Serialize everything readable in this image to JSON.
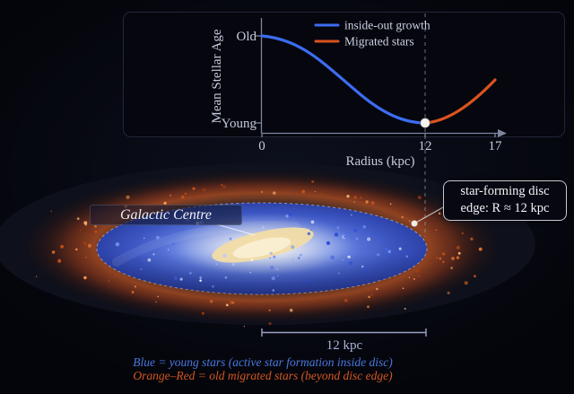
{
  "palette": {
    "page_bg": "#080a14",
    "panel_bg": "#05060e",
    "axis_color": "#7e87a0",
    "tick_text": "#c6cbdd",
    "blue_curve": "#3c6cf0",
    "orange_curve": "#d8531f",
    "marker_dot": "#f5f2ee",
    "dashed_line": "#9aa0b8",
    "disc_blue": "#3b57c8",
    "halo_orange": "#cd5b20",
    "bulge_cream": "#f6e2ae",
    "scalebar_color": "#99a2c8",
    "caption_blue": "#4a78e0",
    "caption_orange": "#d4581f"
  },
  "chart": {
    "ylabel": "Mean Stellar Age",
    "xlabel": "Radius (kpc)",
    "ytick_old": "Old",
    "ytick_young": "Young",
    "xtick_0": "0",
    "xtick_12": "12",
    "xtick_17": "17",
    "legend": {
      "inside_out": "inside-out growth",
      "migrated": "Migrated stars"
    }
  },
  "chart_data": {
    "type": "line",
    "title": "",
    "xlabel": "Radius (kpc)",
    "ylabel": "Mean Stellar Age",
    "x_ticks": [
      0,
      12,
      17
    ],
    "y_ticks_qualitative": [
      "Young",
      "Old"
    ],
    "y_note": "qualitative axis: 0 = Young (bottom), 1 = Old (top)",
    "series": [
      {
        "name": "inside-out growth",
        "color": "#3c6cf0",
        "x": [
          0,
          2,
          4,
          6,
          8,
          10,
          12
        ],
        "y": [
          1.0,
          0.92,
          0.74,
          0.5,
          0.26,
          0.08,
          0.0
        ]
      },
      {
        "name": "Migrated stars",
        "color": "#d8531f",
        "x": [
          12,
          13,
          14,
          15,
          16,
          17
        ],
        "y": [
          0.0,
          0.04,
          0.12,
          0.24,
          0.38,
          0.55
        ]
      }
    ],
    "annotations": [
      {
        "type": "marker",
        "x": 12,
        "y": 0,
        "style": "white-dot"
      },
      {
        "type": "dashed-vline",
        "x": 12
      }
    ],
    "legend_position": "upper-right",
    "grid": false
  },
  "galaxy": {
    "centre_label": "Galactic Centre",
    "callout": {
      "line1": "star-forming disc",
      "line2": "edge: R ≈ 12 kpc"
    },
    "scalebar_label": "12 kpc"
  },
  "captions": {
    "blue_line": "Blue = young stars (active star formation inside disc)",
    "orange_line": "Orange–Red = old migrated stars (beyond disc edge)"
  },
  "decor": {
    "disc_star_colors": [
      "#2a49d8",
      "#4a66e8",
      "#7d97f5",
      "#b9c8ff",
      "#ffffff"
    ],
    "halo_star_colors": [
      "#ff9a4d",
      "#e8762e",
      "#c8521a",
      "#ffb977",
      "#a83d10"
    ],
    "disc_star_count": 70,
    "halo_star_count": 90,
    "seed": 12
  }
}
